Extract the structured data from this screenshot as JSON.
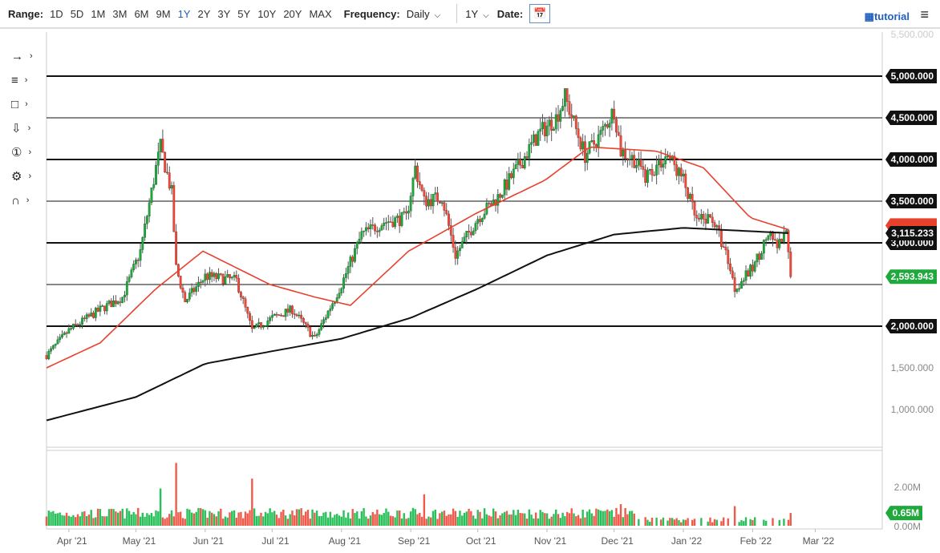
{
  "toolbar": {
    "range_label": "Range:",
    "ranges": [
      "1D",
      "5D",
      "1M",
      "3M",
      "6M",
      "9M",
      "1Y",
      "2Y",
      "3Y",
      "5Y",
      "10Y",
      "20Y",
      "MAX"
    ],
    "active_range": "1Y",
    "frequency_label": "Frequency:",
    "frequency_value": "Daily",
    "period_value": "1Y",
    "date_label": "Date:",
    "tutorial": "tutorial"
  },
  "tools": [
    "→ point",
    "≡ list",
    "□ rect",
    "⇩ arrow",
    "① label",
    "⚙ fib",
    "∩ magnet"
  ],
  "chart_data": {
    "type": "candlestick",
    "ylim": [
      500,
      5600
    ],
    "y_ticks": [
      {
        "v": 5500,
        "t": "5,500.000",
        "style": "faint"
      },
      {
        "v": 5000,
        "t": "5,000.000",
        "style": "box"
      },
      {
        "v": 4500,
        "t": "4,500.000",
        "style": "box"
      },
      {
        "v": 4000,
        "t": "4,000.000",
        "style": "box"
      },
      {
        "v": 3500,
        "t": "3,500.000",
        "style": "box"
      },
      {
        "v": 3000,
        "t": "3,000.000",
        "style": "box"
      },
      {
        "v": 2000,
        "t": "2,000.000",
        "style": "box"
      },
      {
        "v": 1500,
        "t": "1,500.000",
        "style": "plain"
      },
      {
        "v": 1000,
        "t": "1,000.000",
        "style": "plain"
      }
    ],
    "hlines": [
      {
        "v": 5000,
        "w": 2
      },
      {
        "v": 4500,
        "w": 1
      },
      {
        "v": 4000,
        "w": 2
      },
      {
        "v": 3500,
        "w": 1
      },
      {
        "v": 3000,
        "w": 2
      },
      {
        "v": 2500,
        "w": 1
      },
      {
        "v": 2000,
        "w": 2
      }
    ],
    "x_start": "2021-03-22",
    "x_end": "2022-03-31",
    "x_ticks": [
      [
        "2021-04-01",
        "Apr '21"
      ],
      [
        "2021-05-01",
        "May '21"
      ],
      [
        "2021-06-01",
        "Jun '21"
      ],
      [
        "2021-07-01",
        "Jul '21"
      ],
      [
        "2021-08-01",
        "Aug '21"
      ],
      [
        "2021-09-01",
        "Sep '21"
      ],
      [
        "2021-10-01",
        "Oct '21"
      ],
      [
        "2021-11-01",
        "Nov '21"
      ],
      [
        "2021-12-01",
        "Dec '21"
      ],
      [
        "2022-01-01",
        "Jan '22"
      ],
      [
        "2022-02-01",
        "Feb '22"
      ],
      [
        "2022-03-01",
        "Mar '22"
      ]
    ],
    "price_keypoints": [
      [
        "2021-03-22",
        1650
      ],
      [
        "2021-04-01",
        1950
      ],
      [
        "2021-04-15",
        2200
      ],
      [
        "2021-04-25",
        2350
      ],
      [
        "2021-05-03",
        2900
      ],
      [
        "2021-05-10",
        3900
      ],
      [
        "2021-05-12",
        4150
      ],
      [
        "2021-05-17",
        3600
      ],
      [
        "2021-05-19",
        2700
      ],
      [
        "2021-05-23",
        2300
      ],
      [
        "2021-06-01",
        2600
      ],
      [
        "2021-06-15",
        2550
      ],
      [
        "2021-06-22",
        1950
      ],
      [
        "2021-07-01",
        2100
      ],
      [
        "2021-07-10",
        2200
      ],
      [
        "2021-07-20",
        1850
      ],
      [
        "2021-08-01",
        2500
      ],
      [
        "2021-08-10",
        3100
      ],
      [
        "2021-08-20",
        3250
      ],
      [
        "2021-08-30",
        3300
      ],
      [
        "2021-09-03",
        3900
      ],
      [
        "2021-09-07",
        3500
      ],
      [
        "2021-09-15",
        3550
      ],
      [
        "2021-09-21",
        2850
      ],
      [
        "2021-10-01",
        3300
      ],
      [
        "2021-10-10",
        3550
      ],
      [
        "2021-10-20",
        3950
      ],
      [
        "2021-10-28",
        4300
      ],
      [
        "2021-11-05",
        4500
      ],
      [
        "2021-11-09",
        4750
      ],
      [
        "2021-11-18",
        4050
      ],
      [
        "2021-11-25",
        4300
      ],
      [
        "2021-12-01",
        4600
      ],
      [
        "2021-12-04",
        4100
      ],
      [
        "2021-12-10",
        4000
      ],
      [
        "2021-12-15",
        3800
      ],
      [
        "2021-12-25",
        4050
      ],
      [
        "2022-01-01",
        3750
      ],
      [
        "2022-01-07",
        3250
      ],
      [
        "2022-01-14",
        3300
      ],
      [
        "2022-01-21",
        2800
      ],
      [
        "2022-01-24",
        2450
      ],
      [
        "2022-02-01",
        2700
      ],
      [
        "2022-02-08",
        3100
      ],
      [
        "2022-02-12",
        2950
      ],
      [
        "2022-02-16",
        3100
      ],
      [
        "2022-02-18",
        2594
      ]
    ],
    "ma50": [
      [
        "2021-03-22",
        1500
      ],
      [
        "2021-04-15",
        1800
      ],
      [
        "2021-05-10",
        2450
      ],
      [
        "2021-05-31",
        2900
      ],
      [
        "2021-06-30",
        2500
      ],
      [
        "2021-07-20",
        2350
      ],
      [
        "2021-08-05",
        2250
      ],
      [
        "2021-08-31",
        2900
      ],
      [
        "2021-09-30",
        3350
      ],
      [
        "2021-10-31",
        3750
      ],
      [
        "2021-11-20",
        4150
      ],
      [
        "2021-12-20",
        4100
      ],
      [
        "2022-01-10",
        3900
      ],
      [
        "2022-01-31",
        3300
      ],
      [
        "2022-02-18",
        3150
      ]
    ],
    "ma200": [
      [
        "2021-03-22",
        870
      ],
      [
        "2021-05-01",
        1150
      ],
      [
        "2021-06-01",
        1550
      ],
      [
        "2021-07-01",
        1700
      ],
      [
        "2021-08-01",
        1850
      ],
      [
        "2021-09-01",
        2100
      ],
      [
        "2021-10-01",
        2450
      ],
      [
        "2021-11-01",
        2850
      ],
      [
        "2021-12-01",
        3100
      ],
      [
        "2022-01-01",
        3180
      ],
      [
        "2022-02-18",
        3115
      ]
    ],
    "last_price": {
      "v": 2593.943,
      "t": "2,593.943"
    },
    "ma200_label": {
      "v": 3115.233,
      "t": "3,115.233"
    },
    "volume": {
      "ylim": [
        0,
        2.5
      ],
      "ticks": [
        {
          "v": 2,
          "t": "2.00M"
        },
        {
          "v": 0,
          "t": "0.00M"
        }
      ],
      "last": {
        "v": 0.65,
        "t": "0.65M"
      },
      "typical": 0.7,
      "spikes": [
        [
          "2021-05-19",
          3.2
        ],
        [
          "2021-06-22",
          2.4
        ],
        [
          "2021-05-12",
          1.9
        ],
        [
          "2021-09-07",
          1.6
        ],
        [
          "2021-12-04",
          1.1
        ],
        [
          "2022-01-24",
          1.0
        ]
      ]
    },
    "colors": {
      "up": "#1fa83c",
      "down": "#f0493a",
      "ma50": "#e8412c",
      "ma200": "#111111",
      "volume_up": "#29c05a",
      "volume_down": "#f05a4a"
    }
  }
}
